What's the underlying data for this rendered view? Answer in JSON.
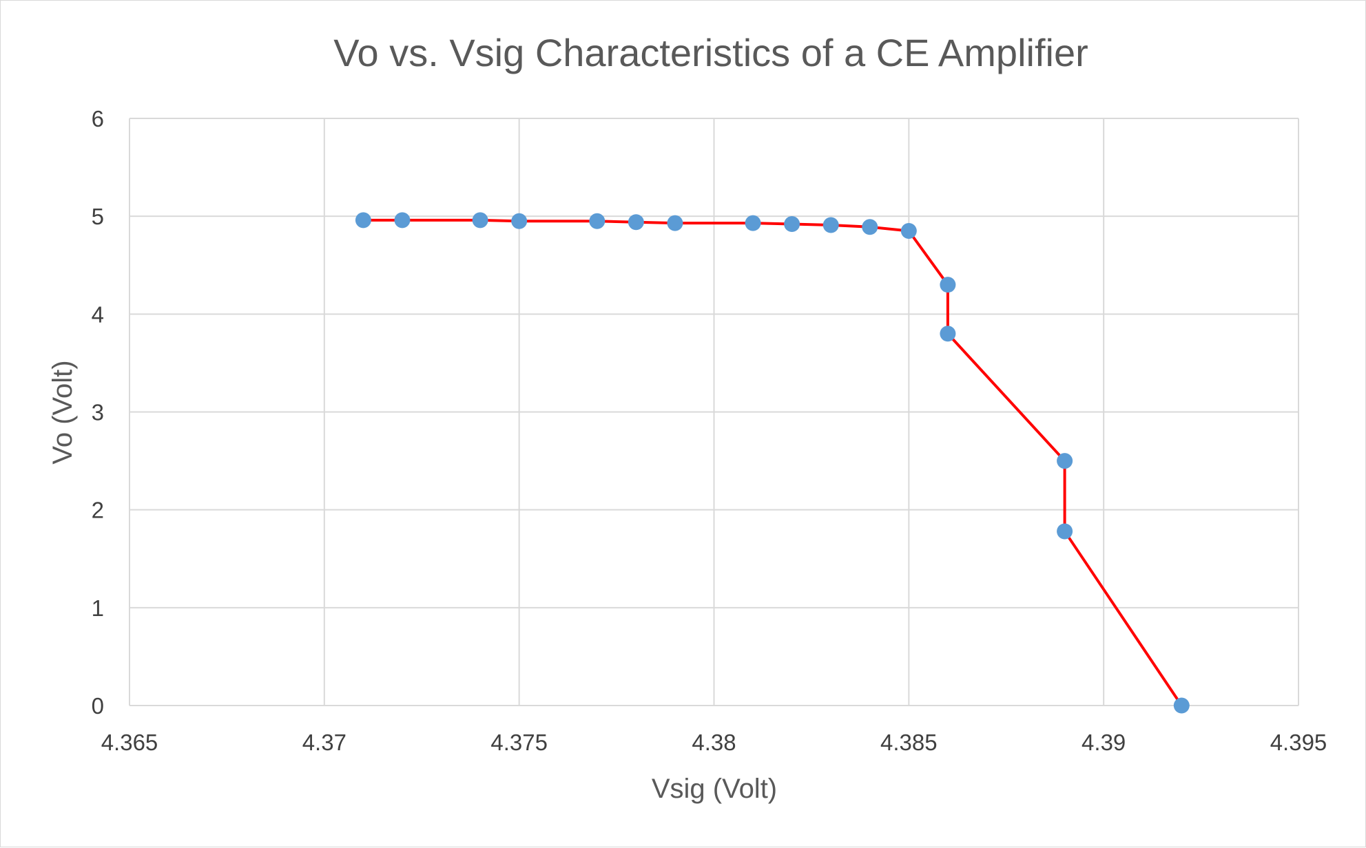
{
  "chart_data": {
    "type": "scatter",
    "title": "Vo vs. Vsig Characteristics of a CE Amplifier",
    "xlabel": "Vsig (Volt)",
    "ylabel": "Vo (Volt)",
    "xlim": [
      4.365,
      4.395
    ],
    "ylim": [
      0,
      6
    ],
    "x_ticks": [
      "4.365",
      "4.37",
      "4.375",
      "4.38",
      "4.385",
      "4.39",
      "4.395"
    ],
    "y_ticks": [
      "0",
      "1",
      "2",
      "3",
      "4",
      "5",
      "6"
    ],
    "grid": true,
    "legend": "none",
    "series": [
      {
        "line_color": "#ff0000",
        "marker_color": "#5b9bd5",
        "points": [
          [
            4.371,
            4.96
          ],
          [
            4.372,
            4.96
          ],
          [
            4.374,
            4.96
          ],
          [
            4.375,
            4.95
          ],
          [
            4.377,
            4.95
          ],
          [
            4.378,
            4.94
          ],
          [
            4.379,
            4.93
          ],
          [
            4.381,
            4.93
          ],
          [
            4.382,
            4.92
          ],
          [
            4.383,
            4.91
          ],
          [
            4.384,
            4.89
          ],
          [
            4.385,
            4.85
          ],
          [
            4.386,
            4.3
          ],
          [
            4.386,
            3.8
          ],
          [
            4.389,
            2.5
          ],
          [
            4.389,
            1.78
          ],
          [
            4.392,
            0.0
          ]
        ]
      }
    ]
  }
}
